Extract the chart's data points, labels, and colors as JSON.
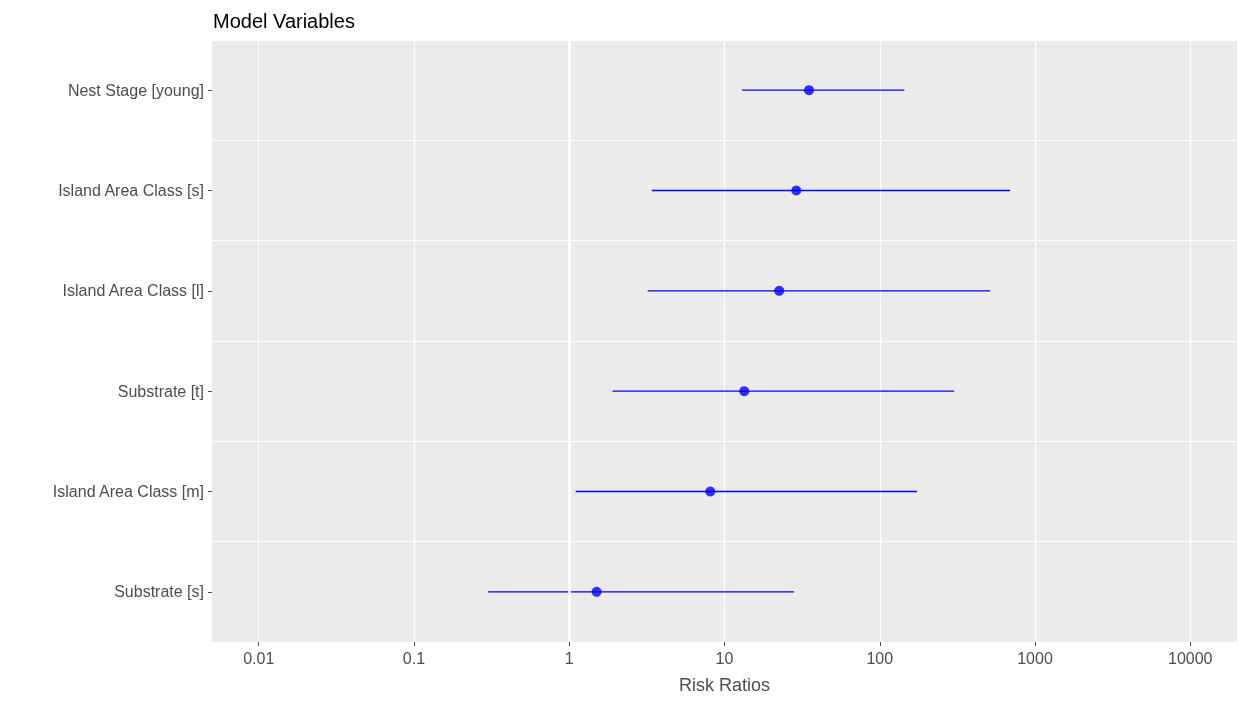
{
  "chart_data": {
    "type": "scatter",
    "title": "Model Variables",
    "xlabel": "Risk Ratios",
    "orientation": "horizontal",
    "categories": [
      "Nest Stage [young]",
      "Island Area Class [s]",
      "Island Area Class [l]",
      "Substrate [t]",
      "Island Area Class [m]",
      "Substrate [s]"
    ],
    "series": [
      {
        "color": "#0000ff",
        "values": [
          35,
          29,
          22.5,
          13.4,
          8.1,
          1.5
        ],
        "errors": [
          [
            13,
            144
          ],
          [
            3.4,
            690
          ],
          [
            3.2,
            514
          ],
          [
            1.9,
            301
          ],
          [
            1.1,
            174
          ],
          [
            0.3,
            28
          ]
        ]
      }
    ],
    "xlim": [
      0.005,
      20000
    ],
    "xticks": [
      0.01,
      0.1,
      1,
      10,
      100,
      1000,
      10000
    ],
    "log": "x",
    "ref_lines": [
      {
        "axis": "x",
        "value": 1,
        "color": "#ffffff"
      }
    ],
    "grid": true,
    "marker": "circle"
  }
}
